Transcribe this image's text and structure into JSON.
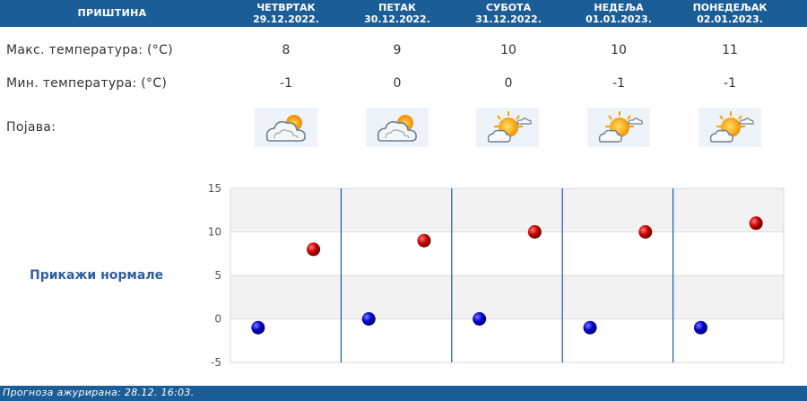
{
  "city": "ПРИШТИНА",
  "days": [
    {
      "day": "ЧЕТВРТАК",
      "date": "29.12.2022.",
      "max": "8",
      "min": "-1",
      "icon": "cloud-sun-icon"
    },
    {
      "day": "ПЕТАК",
      "date": "30.12.2022.",
      "max": "9",
      "min": "0",
      "icon": "cloud-sun-icon"
    },
    {
      "day": "СУБОТА",
      "date": "31.12.2022.",
      "max": "10",
      "min": "0",
      "icon": "sun-cloud-icon"
    },
    {
      "day": "НЕДЕЉА",
      "date": "01.01.2023.",
      "max": "10",
      "min": "-1",
      "icon": "sun-cloud-icon"
    },
    {
      "day": "ПОНЕДЕЉАК",
      "date": "02.01.2023.",
      "max": "11",
      "min": "-1",
      "icon": "sun-cloud-icon"
    }
  ],
  "labels": {
    "max": "Макс. температура: (°C)",
    "min": "Мин. температура: (°C)",
    "phenomenon": "Појава:"
  },
  "show_normals": "Прикажи нормале",
  "footer": "Прогноза ажурирана:  28.12. 16:03.",
  "colors": {
    "header": "#1b5d97",
    "max_marker": "#cc0000",
    "min_marker": "#0000cc"
  },
  "chart_data": {
    "type": "scatter",
    "categories": [
      "29.12.2022.",
      "30.12.2022.",
      "31.12.2022.",
      "01.01.2023.",
      "02.01.2023."
    ],
    "series": [
      {
        "values": [
          8,
          9,
          10,
          10,
          11
        ]
      },
      {
        "values": [
          -1,
          0,
          0,
          -1,
          -1
        ]
      }
    ],
    "ylim": [
      -5,
      15
    ],
    "yticks": [
      "15",
      "10",
      "5",
      "0",
      "-5"
    ],
    "grid": true,
    "legend": "none"
  }
}
